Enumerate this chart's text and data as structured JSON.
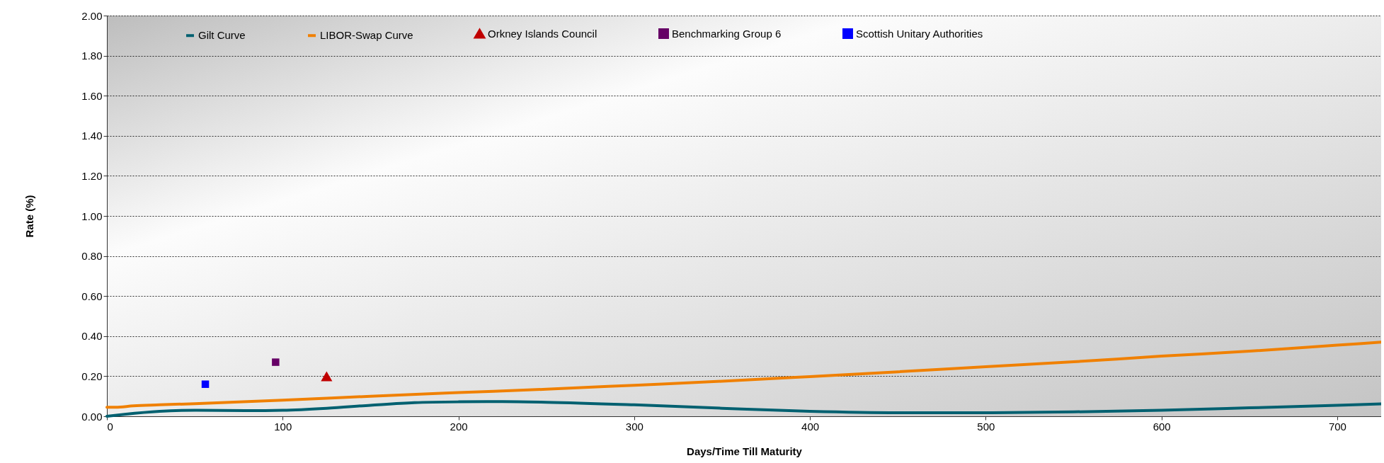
{
  "chart_data": {
    "type": "line",
    "xlabel": "Days/Time Till Maturity",
    "ylabel": "Rate (%)",
    "xlim": [
      0,
      725
    ],
    "xticks": [
      0,
      100,
      200,
      300,
      400,
      500,
      600,
      700
    ],
    "ylim": [
      0,
      2
    ],
    "yticks": [
      {
        "value": 0,
        "label": "0.00"
      },
      {
        "value": 0.2,
        "label": "0.20"
      },
      {
        "value": 0.4,
        "label": "0.40"
      },
      {
        "value": 0.6,
        "label": "0.60"
      },
      {
        "value": 0.8,
        "label": "0.80"
      },
      {
        "value": 1,
        "label": "1.00"
      },
      {
        "value": 1.2,
        "label": "1.20"
      },
      {
        "value": 1.4,
        "label": "1.40"
      },
      {
        "value": 1.6,
        "label": "1.60"
      },
      {
        "value": 1.8,
        "label": "1.80"
      },
      {
        "value": 2,
        "label": "2.00"
      }
    ],
    "grid": "y",
    "legend": "top",
    "line_style": "solid",
    "marker": "none",
    "series": [
      {
        "name": "Gilt Curve",
        "color": "#006070",
        "x": [
          0,
          10,
          30,
          50,
          80,
          100,
          125,
          150,
          175,
          200,
          225,
          250,
          300,
          350,
          400,
          450,
          500,
          550,
          600,
          650,
          700,
          725
        ],
        "values": [
          0.0,
          0.01,
          0.025,
          0.03,
          0.028,
          0.03,
          0.04,
          0.055,
          0.068,
          0.072,
          0.073,
          0.07,
          0.057,
          0.04,
          0.025,
          0.018,
          0.018,
          0.022,
          0.03,
          0.042,
          0.055,
          0.062
        ]
      },
      {
        "name": "LIBOR-Swap Curve",
        "color": "#f08000",
        "x": [
          0,
          5,
          15,
          30,
          50,
          100,
          150,
          200,
          250,
          300,
          350,
          400,
          450,
          500,
          550,
          600,
          650,
          700,
          725
        ],
        "values": [
          0.045,
          0.045,
          0.052,
          0.057,
          0.063,
          0.08,
          0.1,
          0.118,
          0.135,
          0.155,
          0.175,
          0.198,
          0.222,
          0.247,
          0.272,
          0.3,
          0.325,
          0.355,
          0.37
        ]
      },
      {
        "name": "Orkney Islands Council",
        "type": "scatter",
        "marker": "triangle",
        "color": "#c00000",
        "x": [
          125
        ],
        "values": [
          0.2
        ]
      },
      {
        "name": "Benchmarking Group 6",
        "type": "scatter",
        "marker": "square",
        "color": "#660066",
        "x": [
          96
        ],
        "values": [
          0.27
        ]
      },
      {
        "name": "Scottish Unitary Authorities",
        "type": "scatter",
        "marker": "square",
        "color": "#0000ff",
        "x": [
          56
        ],
        "values": [
          0.16
        ]
      }
    ]
  }
}
